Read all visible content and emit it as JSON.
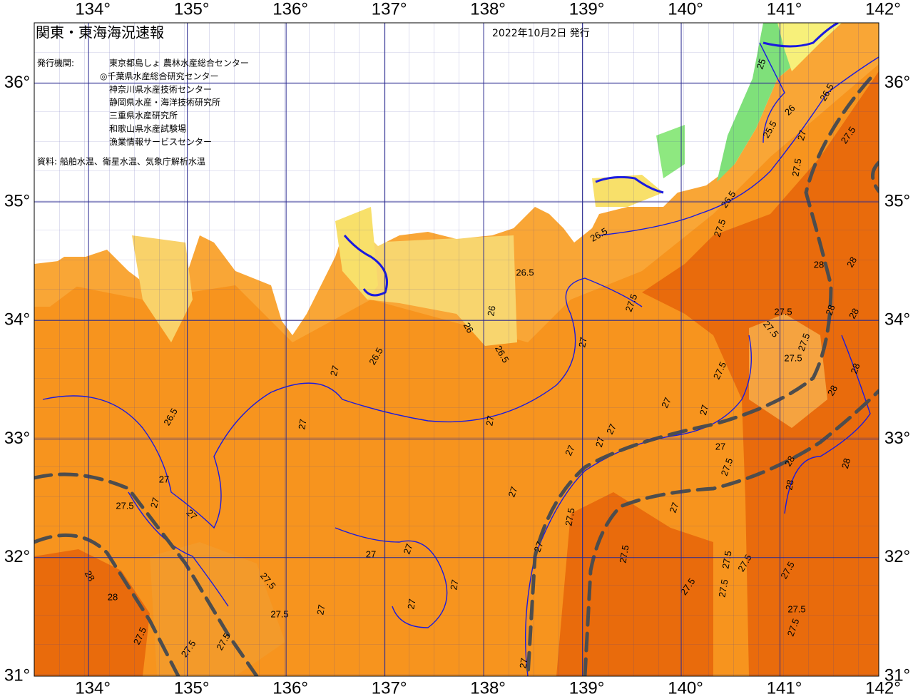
{
  "map": {
    "title": "関東・東海海況速報",
    "issue_date": "2022年10月2日 発行",
    "issuer_label": "発行機関:",
    "issuers": [
      "東京都島しょ 農林水産総合センター",
      "◎千葉県水産総合研究センター",
      "神奈川県水産技術センター",
      "静岡県水産・海洋技術研究所",
      "三重県水産研究所",
      "和歌山県水産試験場",
      "漁業情報サービスセンター"
    ],
    "source": "資料: 船舶水温、衛星水温、気象庁解析水温",
    "xlim": [
      133.45,
      142
    ],
    "ylim": [
      31,
      36.51
    ],
    "xticks": [
      {
        "value": 134,
        "label": "134°"
      },
      {
        "value": 135,
        "label": "135°"
      },
      {
        "value": 136,
        "label": "136°"
      },
      {
        "value": 137,
        "label": "137°"
      },
      {
        "value": 138,
        "label": "138°"
      },
      {
        "value": 139,
        "label": "139°"
      },
      {
        "value": 140,
        "label": "140°"
      },
      {
        "value": 141,
        "label": "141°"
      },
      {
        "value": 142,
        "label": "142°"
      }
    ],
    "yticks": [
      {
        "value": 31,
        "label": "31°"
      },
      {
        "value": 32,
        "label": "32°"
      },
      {
        "value": 33,
        "label": "33°"
      },
      {
        "value": 34,
        "label": "34°"
      },
      {
        "value": 35,
        "label": "35°"
      },
      {
        "value": 36,
        "label": "36°"
      }
    ],
    "contour_labels": [
      25,
      26.5,
      26,
      25.5,
      27.5,
      27,
      27.5,
      26.5,
      27.5,
      26.5,
      26.5,
      27.5,
      28,
      28,
      27.5,
      27.5,
      28,
      28,
      27.5,
      27.5,
      26,
      26,
      26.5,
      27,
      26.5,
      27,
      27.5,
      28,
      28,
      27,
      27,
      26.5,
      27,
      27,
      27,
      27,
      27,
      27,
      27.5,
      28,
      28,
      28,
      27,
      27.5,
      27,
      27,
      27,
      27.5,
      27,
      27,
      27,
      27,
      27.5,
      27.5,
      27.5,
      27.5,
      28,
      27.5,
      27,
      27.5,
      27.5,
      28,
      27,
      27,
      27.5,
      27.5,
      27.5,
      27.5,
      27.5,
      27.5,
      27
    ]
  }
}
